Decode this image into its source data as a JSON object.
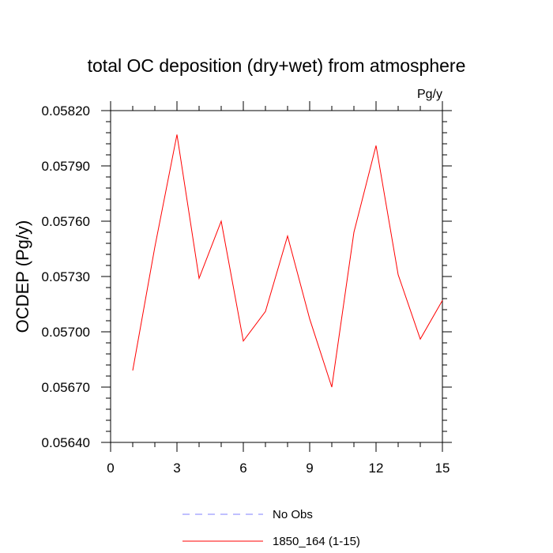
{
  "chart_data": {
    "type": "line",
    "title": "total OC deposition (dry+wet) from atmosphere",
    "units": "Pg/y",
    "ylabel": "OCDEP  (Pg/y)",
    "xlabel": "",
    "xlim": [
      0,
      15
    ],
    "ylim": [
      0.0564,
      0.0582
    ],
    "x_ticks": [
      0,
      3,
      6,
      9,
      12,
      15
    ],
    "y_ticks": [
      "0.05640",
      "0.05670",
      "0.05700",
      "0.05730",
      "0.05760",
      "0.05790",
      "0.05820"
    ],
    "grid": false,
    "legend_position": "bottom",
    "x": [
      1,
      2,
      3,
      4,
      5,
      6,
      7,
      8,
      9,
      10,
      11,
      12,
      13,
      14,
      15
    ],
    "series": [
      {
        "name": "1850_164 (1-15)",
        "color": "#ff0000",
        "style": "solid",
        "values": [
          0.05679,
          0.05746,
          0.05807,
          0.05729,
          0.0576,
          0.05695,
          0.05711,
          0.05752,
          0.05707,
          0.0567,
          0.05754,
          0.05801,
          0.05731,
          0.05696,
          0.05717
        ]
      }
    ],
    "legend": [
      {
        "label": "No Obs",
        "color": "#8080ff",
        "style": "dashed"
      },
      {
        "label": "1850_164 (1-15)",
        "color": "#ff0000",
        "style": "solid"
      }
    ]
  }
}
